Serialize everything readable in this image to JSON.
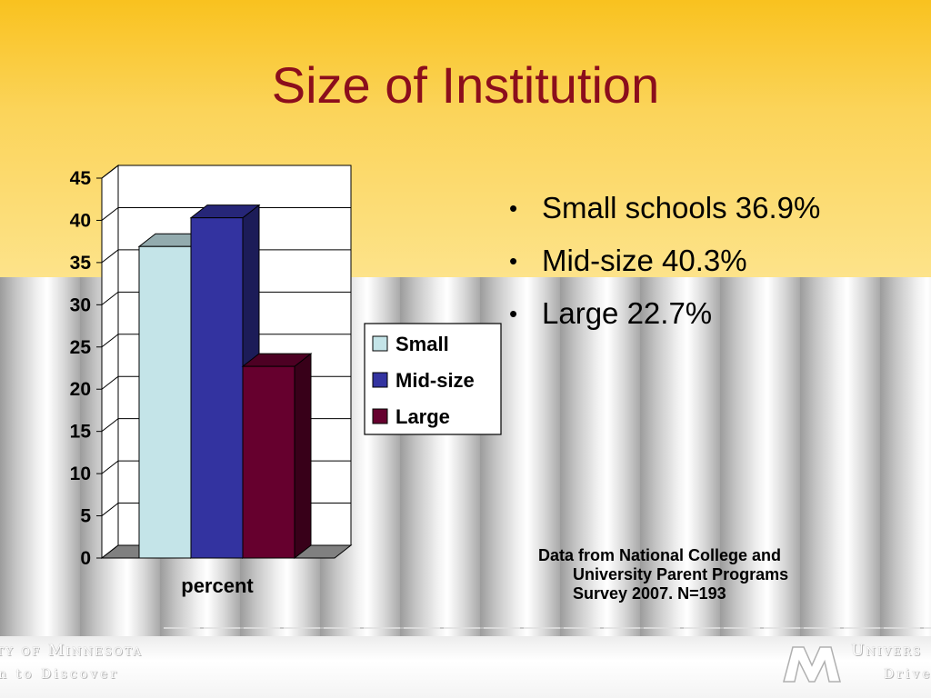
{
  "slide": {
    "title": "Size of Institution"
  },
  "bullets": [
    {
      "text": "Small schools 36.9%"
    },
    {
      "text": "Mid-size 40.3%"
    },
    {
      "text": "Large 22.7%"
    }
  ],
  "source_note": {
    "line1": "Data from National College and",
    "line2": "University Parent Programs",
    "line3": "Survey 2007. N=193"
  },
  "footer": {
    "left_logo": "ty of Minnesota",
    "left_tagline": "n to Discover",
    "right_logo": "Univers",
    "right_tagline": "Drive"
  },
  "colors": {
    "small": "#c4e4e8",
    "mid_size": "#3333a0",
    "large": "#66002e",
    "title": "#8b0e1c"
  },
  "chart_data": {
    "type": "bar",
    "style": "3d-clustered-column",
    "categories": [
      "percent"
    ],
    "series": [
      {
        "name": "Small",
        "values": [
          36.9
        ]
      },
      {
        "name": "Mid-size",
        "values": [
          40.3
        ]
      },
      {
        "name": "Large",
        "values": [
          22.7
        ]
      }
    ],
    "yticks": [
      "0",
      "5",
      "10",
      "15",
      "20",
      "25",
      "30",
      "35",
      "40",
      "45"
    ],
    "ylim": [
      0,
      45
    ],
    "xlabel": "",
    "ylabel": "",
    "grid": true,
    "legend": "right"
  }
}
